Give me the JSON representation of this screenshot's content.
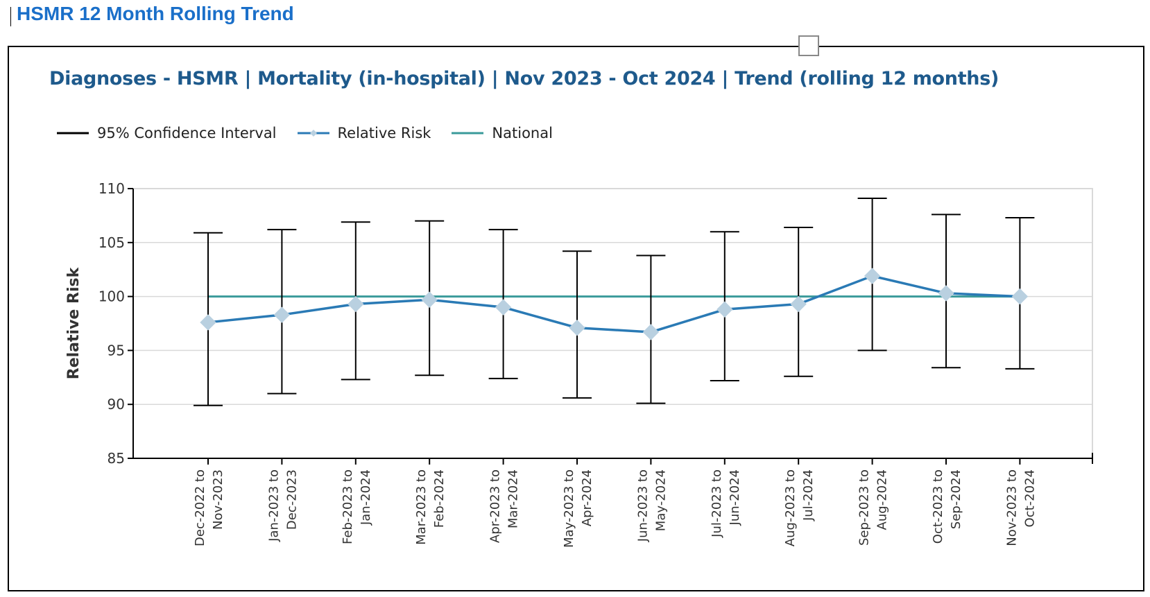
{
  "page": {
    "title": "HSMR 12 Month Rolling Trend"
  },
  "chart_data": {
    "type": "line",
    "title": "Diagnoses - HSMR | Mortality (in-hospital) | Nov 2023 - Oct 2024 | Trend (rolling 12 months)",
    "xlabel": "",
    "ylabel": "Relative Risk",
    "ylim": [
      85,
      110
    ],
    "yticks": [
      85,
      90,
      95,
      100,
      105,
      110
    ],
    "grid": true,
    "legend_position": "top-left",
    "categories": [
      [
        "Dec-2022 to",
        "Nov-2023"
      ],
      [
        "Jan-2023 to",
        "Dec-2023"
      ],
      [
        "Feb-2023 to",
        "Jan-2024"
      ],
      [
        "Mar-2023 to",
        "Feb-2024"
      ],
      [
        "Apr-2023 to",
        "Mar-2024"
      ],
      [
        "May-2023 to",
        "Apr-2024"
      ],
      [
        "Jun-2023 to",
        "May-2024"
      ],
      [
        "Jul-2023 to",
        "Jun-2024"
      ],
      [
        "Aug-2023 to",
        "Jul-2024"
      ],
      [
        "Sep-2023 to",
        "Aug-2024"
      ],
      [
        "Oct-2023 to",
        "Sep-2024"
      ],
      [
        "Nov-2023 to",
        "Oct-2024"
      ]
    ],
    "series": [
      {
        "name": "95% Confidence Interval",
        "kind": "errorbar",
        "lower": [
          89.9,
          91.0,
          92.3,
          92.7,
          92.4,
          90.6,
          90.1,
          92.2,
          92.6,
          95.0,
          93.4,
          93.3
        ],
        "upper": [
          105.9,
          106.2,
          106.9,
          107.0,
          106.2,
          104.2,
          103.8,
          106.0,
          106.4,
          109.1,
          107.6,
          107.3
        ]
      },
      {
        "name": "Relative Risk",
        "kind": "line-marker",
        "values": [
          97.6,
          98.3,
          99.3,
          99.7,
          99.0,
          97.1,
          96.7,
          98.8,
          99.3,
          101.9,
          100.3,
          100.0
        ]
      },
      {
        "name": "National",
        "kind": "line",
        "values": [
          100,
          100,
          100,
          100,
          100,
          100,
          100,
          100,
          100,
          100,
          100,
          100
        ]
      }
    ],
    "colors": {
      "ci": "#000000",
      "relative_risk": "#2a7ab5",
      "marker": "#b9d0e0",
      "national": "#3a9a9a",
      "grid": "#d9d9d9",
      "axis": "#000000"
    }
  }
}
